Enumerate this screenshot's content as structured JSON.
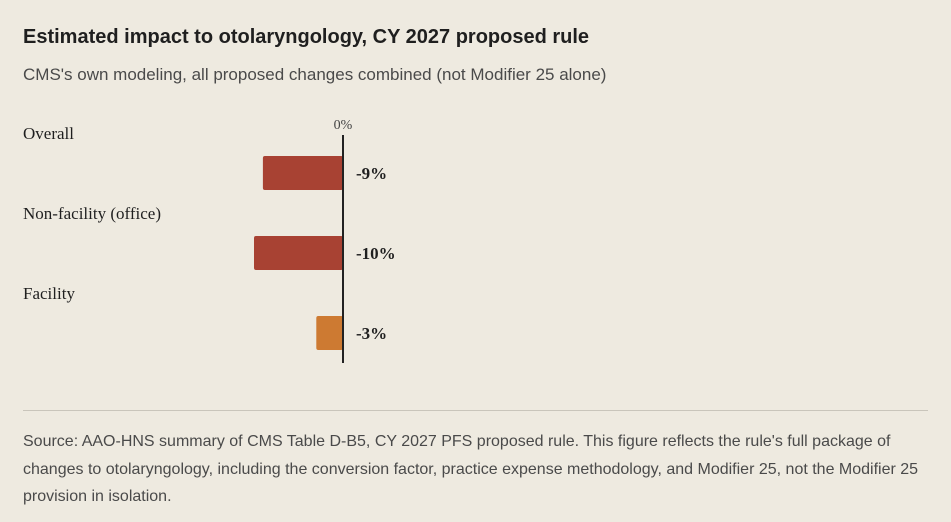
{
  "header": {
    "title": "Estimated impact to otolaryngology, CY 2027 proposed rule",
    "subtitle": "CMS's own modeling, all proposed changes combined (not Modifier 25 alone)"
  },
  "chart_data": {
    "type": "bar",
    "orientation": "horizontal",
    "categories": [
      "Overall",
      "Non-facility (office)",
      "Facility"
    ],
    "values": [
      -9,
      -10,
      -3
    ],
    "value_labels": [
      "-9%",
      "-10%",
      "-3%"
    ],
    "zero_label": "0%",
    "colors": [
      "#a84233",
      "#a84233",
      "#cd7a32"
    ],
    "axis_color": "#222222",
    "xlim": [
      -12,
      0
    ],
    "grid": false
  },
  "footer": {
    "source": "Source: AAO-HNS summary of CMS Table D-B5, CY 2027 PFS proposed rule. This figure reflects the rule's full package of changes to otolaryngology, including the conversion factor, practice expense methodology, and Modifier 25, not the Modifier 25 provision in isolation."
  }
}
